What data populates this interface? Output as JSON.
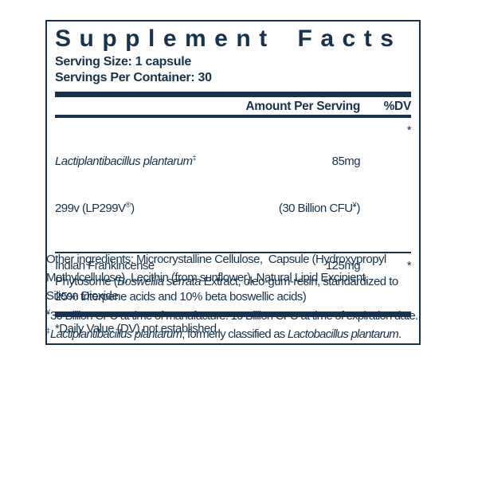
{
  "colors": {
    "navy": "#17334e",
    "background": "#ffffff"
  },
  "label": {
    "title": "Supplement Facts",
    "serving_size": "Serving Size: 1 capsule",
    "servings_per_container": "Servings Per Container: 30",
    "columns": {
      "amount": "Amount Per Serving",
      "dv": "%DV"
    },
    "rows": [
      {
        "name_italic": "Lactiplantibacillus plantarum",
        "name_sup": "‡",
        "name_line2_pre": "299v (LP299V",
        "name_line2_sup": "®",
        "name_line2_post": ")",
        "amount": "85mg",
        "amount_line2_pre": "(30 Billion CFU",
        "amount_line2_sup": "¥",
        "amount_line2_post": ")",
        "dv": "*"
      },
      {
        "name": "Indian Frankincense",
        "amount": "125mg",
        "dv": "*",
        "desc_line1_pre": "Phytosome (",
        "desc_line1_italic": "Boswellia serrata",
        "desc_line1_post": " Extract, oleo-gum-resin, standardized to",
        "desc_line2": "25% triterpene acids and 10% beta boswellic acids)"
      }
    ],
    "footnote": "*Daily Value (DV) not established"
  },
  "below": {
    "other_ingredients": {
      "line1": "Other ingredients: Microcrystalline Cellulose,  Capsule (Hydroxypropyl",
      "line2": "Methylcellulose), Lecithin (from sunflower), Natural Lipid Excipient,",
      "line3": "Silicon Dioxide."
    },
    "footnote_cfu": {
      "sup": "¥",
      "text": "30 Billion CFU at time of manufacture. 10 Billion CFU at time of expiration date."
    },
    "footnote_name": {
      "sup": "‡",
      "italic1": "Lactiplantibacillus plantarum",
      "middle": ", formerly classified as ",
      "italic2": "Lactobacillus plantarum",
      "end": "."
    }
  }
}
